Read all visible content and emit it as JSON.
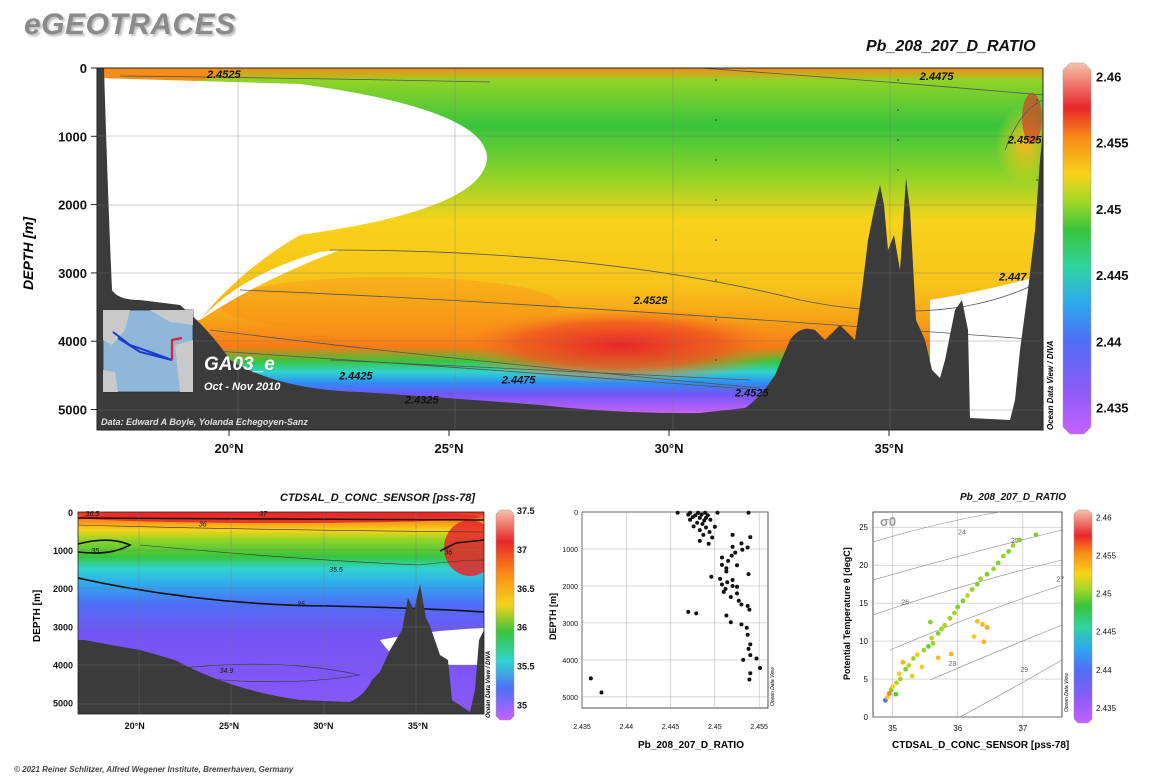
{
  "app_title": "eGEOTRACES",
  "footer": "© 2021 Reiner Schlitzer, Alfred Wegener Institute, Bremerhaven, Germany",
  "colors": {
    "bathymetry": "#3b3b3b",
    "colormap": [
      "#c561ff",
      "#6f57f5",
      "#2f8df7",
      "#2fd4d0",
      "#39c43c",
      "#8fd327",
      "#f7d31a",
      "#f98a17",
      "#e8262a",
      "#f7c1a9"
    ]
  },
  "main": {
    "title": "Pb_208_207_D_RATIO",
    "ylabel": "DEPTH [m]",
    "section_name": "GA03_e",
    "date_range": "Oct - Nov 2010",
    "data_credit": "Data: Edward A Boyle, Yolanda Echegoyen-Sanz",
    "watermark": "Ocean Data View / DIVA",
    "colorbar_ticks": [
      "2.46",
      "2.455",
      "2.45",
      "2.445",
      "2.44",
      "2.435"
    ]
  },
  "sal_section": {
    "title": "CTDSAL_D_CONC_SENSOR [pss-78]",
    "ylabel": "DEPTH [m]",
    "watermark": "Ocean Data View / DIVA",
    "colorbar_ticks": [
      "37.5",
      "37",
      "36.5",
      "36",
      "35.5",
      "35"
    ]
  },
  "profile": {
    "title": "",
    "xlabel": "Pb_208_207_D_RATIO",
    "ylabel": "DEPTH [m]",
    "watermark": "Ocean Data View"
  },
  "ts": {
    "title": "Pb_208_207_D_RATIO",
    "xlabel": "CTDSAL_D_CONC_SENSOR [pss-78]",
    "ylabel": "Potential Temperature θ [degC]",
    "sigma_label": "σ0",
    "watermark": "Ocean Data View",
    "colorbar_ticks": [
      "2.46",
      "2.455",
      "2.45",
      "2.445",
      "2.44",
      "2.435"
    ]
  },
  "chart_data": [
    {
      "type": "heatmap",
      "title": "Pb_208_207_D_RATIO",
      "xlabel": "",
      "ylabel": "DEPTH [m]",
      "x_ticks": [
        "20°N",
        "25°N",
        "30°N",
        "35°N"
      ],
      "y_ticks": [
        0,
        1000,
        2000,
        3000,
        4000,
        5000
      ],
      "xlim": [
        17,
        38.5
      ],
      "ylim": [
        5300,
        0
      ],
      "colorbar_range": [
        2.433,
        2.461
      ],
      "contours": [
        {
          "label": "2.4525",
          "x": 19.5,
          "y": 90
        },
        {
          "label": "2.4475",
          "x": 35.7,
          "y": 120
        },
        {
          "label": "2.4525",
          "x": 37.7,
          "y": 1050
        },
        {
          "label": "2.447",
          "x": 37.5,
          "y": 3050
        },
        {
          "label": "2.4525",
          "x": 29.2,
          "y": 3400
        },
        {
          "label": "2.4425",
          "x": 22.5,
          "y": 4500
        },
        {
          "label": "2.4475",
          "x": 26.2,
          "y": 4560
        },
        {
          "label": "2.4525",
          "x": 31.5,
          "y": 4750
        },
        {
          "label": "2.4325",
          "x": 24,
          "y": 4850
        }
      ]
    },
    {
      "type": "heatmap",
      "title": "CTDSAL_D_CONC_SENSOR [pss-78]",
      "xlabel": "",
      "ylabel": "DEPTH [m]",
      "x_ticks": [
        "20°N",
        "25°N",
        "30°N",
        "35°N"
      ],
      "y_ticks": [
        0,
        1000,
        2000,
        3000,
        4000,
        5000
      ],
      "xlim": [
        17,
        38.5
      ],
      "ylim": [
        5300,
        0
      ],
      "colorbar_range": [
        34.8,
        37.5
      ],
      "contours": [
        {
          "label": "36.5",
          "x": 17.4,
          "y": 20
        },
        {
          "label": "37",
          "x": 26.6,
          "y": 20
        },
        {
          "label": "36",
          "x": 23.4,
          "y": 300
        },
        {
          "label": "35",
          "x": 17.7,
          "y": 1000
        },
        {
          "label": "35.5",
          "x": 30.3,
          "y": 1500
        },
        {
          "label": "36",
          "x": 36.4,
          "y": 1030
        },
        {
          "label": "35",
          "x": 28.6,
          "y": 2400
        },
        {
          "label": "34.9",
          "x": 24.5,
          "y": 4150
        }
      ]
    },
    {
      "type": "scatter",
      "title": "",
      "xlabel": "Pb_208_207_D_RATIO",
      "ylabel": "DEPTH [m]",
      "xlim": [
        2.435,
        2.456
      ],
      "ylim": [
        5300,
        0
      ],
      "x_ticks": [
        2.435,
        2.44,
        2.445,
        2.45,
        2.455
      ],
      "y_ticks": [
        0,
        1000,
        2000,
        3000,
        4000,
        5000
      ],
      "points": [
        {
          "x": 2.4458,
          "y": 20
        },
        {
          "x": 2.4472,
          "y": 20
        },
        {
          "x": 2.4481,
          "y": 20
        },
        {
          "x": 2.4489,
          "y": 20
        },
        {
          "x": 2.4503,
          "y": 20
        },
        {
          "x": 2.4538,
          "y": 20
        },
        {
          "x": 2.447,
          "y": 70
        },
        {
          "x": 2.4478,
          "y": 90
        },
        {
          "x": 2.4485,
          "y": 70
        },
        {
          "x": 2.4492,
          "y": 90
        },
        {
          "x": 2.4475,
          "y": 140
        },
        {
          "x": 2.4483,
          "y": 160
        },
        {
          "x": 2.449,
          "y": 160
        },
        {
          "x": 2.4472,
          "y": 210
        },
        {
          "x": 2.4488,
          "y": 230
        },
        {
          "x": 2.4495,
          "y": 210
        },
        {
          "x": 2.448,
          "y": 290
        },
        {
          "x": 2.4486,
          "y": 320
        },
        {
          "x": 2.4476,
          "y": 390
        },
        {
          "x": 2.449,
          "y": 420
        },
        {
          "x": 2.45,
          "y": 400
        },
        {
          "x": 2.4483,
          "y": 490
        },
        {
          "x": 2.4494,
          "y": 540
        },
        {
          "x": 2.4487,
          "y": 620
        },
        {
          "x": 2.4497,
          "y": 690
        },
        {
          "x": 2.452,
          "y": 620
        },
        {
          "x": 2.454,
          "y": 680
        },
        {
          "x": 2.4483,
          "y": 780
        },
        {
          "x": 2.4493,
          "y": 860
        },
        {
          "x": 2.453,
          "y": 850
        },
        {
          "x": 2.452,
          "y": 940
        },
        {
          "x": 2.4537,
          "y": 960
        },
        {
          "x": 2.4531,
          "y": 1020
        },
        {
          "x": 2.4523,
          "y": 1100
        },
        {
          "x": 2.4519,
          "y": 1180
        },
        {
          "x": 2.4508,
          "y": 1230
        },
        {
          "x": 2.4515,
          "y": 1320
        },
        {
          "x": 2.4508,
          "y": 1430
        },
        {
          "x": 2.4525,
          "y": 1440
        },
        {
          "x": 2.4513,
          "y": 1520
        },
        {
          "x": 2.4513,
          "y": 1610
        },
        {
          "x": 2.4538,
          "y": 1680
        },
        {
          "x": 2.4496,
          "y": 1750
        },
        {
          "x": 2.4506,
          "y": 1810
        },
        {
          "x": 2.452,
          "y": 1840
        },
        {
          "x": 2.4514,
          "y": 1900
        },
        {
          "x": 2.4508,
          "y": 1960
        },
        {
          "x": 2.452,
          "y": 2000
        },
        {
          "x": 2.4525,
          "y": 2020
        },
        {
          "x": 2.4512,
          "y": 2080
        },
        {
          "x": 2.451,
          "y": 2160
        },
        {
          "x": 2.4525,
          "y": 2200
        },
        {
          "x": 2.4518,
          "y": 2300
        },
        {
          "x": 2.4527,
          "y": 2400
        },
        {
          "x": 2.453,
          "y": 2500
        },
        {
          "x": 2.4537,
          "y": 2540
        },
        {
          "x": 2.4539,
          "y": 2640
        },
        {
          "x": 2.447,
          "y": 2700
        },
        {
          "x": 2.4479,
          "y": 2740
        },
        {
          "x": 2.4513,
          "y": 2800
        },
        {
          "x": 2.4518,
          "y": 2980
        },
        {
          "x": 2.453,
          "y": 3040
        },
        {
          "x": 2.4536,
          "y": 3130
        },
        {
          "x": 2.4537,
          "y": 3320
        },
        {
          "x": 2.454,
          "y": 3580
        },
        {
          "x": 2.4538,
          "y": 3700
        },
        {
          "x": 2.454,
          "y": 3870
        },
        {
          "x": 2.4532,
          "y": 4000
        },
        {
          "x": 2.4547,
          "y": 3960
        },
        {
          "x": 2.4551,
          "y": 4220
        },
        {
          "x": 2.454,
          "y": 4360
        },
        {
          "x": 2.4539,
          "y": 4530
        },
        {
          "x": 2.436,
          "y": 4500
        },
        {
          "x": 2.4372,
          "y": 4880
        }
      ]
    },
    {
      "type": "scatter",
      "title": "Pb_208_207_D_RATIO",
      "xlabel": "CTDSAL_D_CONC_SENSOR [pss-78]",
      "ylabel": "Potential Temperature θ [degC]",
      "xlim": [
        34.7,
        37.6
      ],
      "ylim": [
        0,
        27
      ],
      "x_ticks": [
        35,
        36,
        37
      ],
      "y_ticks": [
        0,
        5,
        10,
        15,
        20,
        25
      ],
      "isopycnal_labels": [
        "24",
        "25",
        "26",
        "27",
        "28",
        "29"
      ],
      "points": [
        {
          "s": 34.89,
          "t": 2.2,
          "v": 2.437
        },
        {
          "s": 34.92,
          "t": 2.6,
          "v": 2.452
        },
        {
          "s": 34.95,
          "t": 3.1,
          "v": 2.455
        },
        {
          "s": 34.98,
          "t": 3.6,
          "v": 2.448
        },
        {
          "s": 35.0,
          "t": 4.0,
          "v": 2.452
        },
        {
          "s": 35.06,
          "t": 4.5,
          "v": 2.45
        },
        {
          "s": 35.12,
          "t": 5.0,
          "v": 2.449
        },
        {
          "s": 35.1,
          "t": 5.7,
          "v": 2.452
        },
        {
          "s": 35.2,
          "t": 6.3,
          "v": 2.448
        },
        {
          "s": 35.25,
          "t": 6.8,
          "v": 2.45
        },
        {
          "s": 35.16,
          "t": 7.2,
          "v": 2.453
        },
        {
          "s": 35.32,
          "t": 7.7,
          "v": 2.449
        },
        {
          "s": 35.38,
          "t": 8.2,
          "v": 2.451
        },
        {
          "s": 35.48,
          "t": 8.8,
          "v": 2.449
        },
        {
          "s": 35.55,
          "t": 9.3,
          "v": 2.447
        },
        {
          "s": 35.62,
          "t": 9.7,
          "v": 2.449
        },
        {
          "s": 35.6,
          "t": 10.4,
          "v": 2.45
        },
        {
          "s": 35.7,
          "t": 11.0,
          "v": 2.448
        },
        {
          "s": 35.75,
          "t": 11.6,
          "v": 2.449
        },
        {
          "s": 35.8,
          "t": 12.1,
          "v": 2.45
        },
        {
          "s": 35.58,
          "t": 12.5,
          "v": 2.448
        },
        {
          "s": 35.88,
          "t": 13.0,
          "v": 2.449
        },
        {
          "s": 35.95,
          "t": 13.7,
          "v": 2.449
        },
        {
          "s": 36.0,
          "t": 14.5,
          "v": 2.448
        },
        {
          "s": 36.08,
          "t": 15.3,
          "v": 2.448
        },
        {
          "s": 36.15,
          "t": 16.0,
          "v": 2.45
        },
        {
          "s": 36.22,
          "t": 16.8,
          "v": 2.449
        },
        {
          "s": 36.3,
          "t": 17.5,
          "v": 2.448
        },
        {
          "s": 36.35,
          "t": 18.2,
          "v": 2.449
        },
        {
          "s": 36.45,
          "t": 18.8,
          "v": 2.448
        },
        {
          "s": 36.55,
          "t": 19.5,
          "v": 2.449
        },
        {
          "s": 36.62,
          "t": 20.3,
          "v": 2.448
        },
        {
          "s": 36.7,
          "t": 21.2,
          "v": 2.449
        },
        {
          "s": 36.78,
          "t": 21.8,
          "v": 2.448
        },
        {
          "s": 36.85,
          "t": 22.6,
          "v": 2.449
        },
        {
          "s": 36.95,
          "t": 23.3,
          "v": 2.448
        },
        {
          "s": 37.2,
          "t": 24.0,
          "v": 2.448
        },
        {
          "s": 36.3,
          "t": 12.6,
          "v": 2.4525
        },
        {
          "s": 36.38,
          "t": 12.2,
          "v": 2.453
        },
        {
          "s": 36.45,
          "t": 11.8,
          "v": 2.4535
        },
        {
          "s": 36.4,
          "t": 9.9,
          "v": 2.453
        },
        {
          "s": 36.25,
          "t": 10.6,
          "v": 2.452
        },
        {
          "s": 35.9,
          "t": 8.3,
          "v": 2.453
        },
        {
          "s": 35.7,
          "t": 7.8,
          "v": 2.4525
        },
        {
          "s": 35.45,
          "t": 6.6,
          "v": 2.452
        },
        {
          "s": 35.3,
          "t": 5.4,
          "v": 2.451
        },
        {
          "s": 35.05,
          "t": 3.0,
          "v": 2.4465
        }
      ]
    }
  ]
}
